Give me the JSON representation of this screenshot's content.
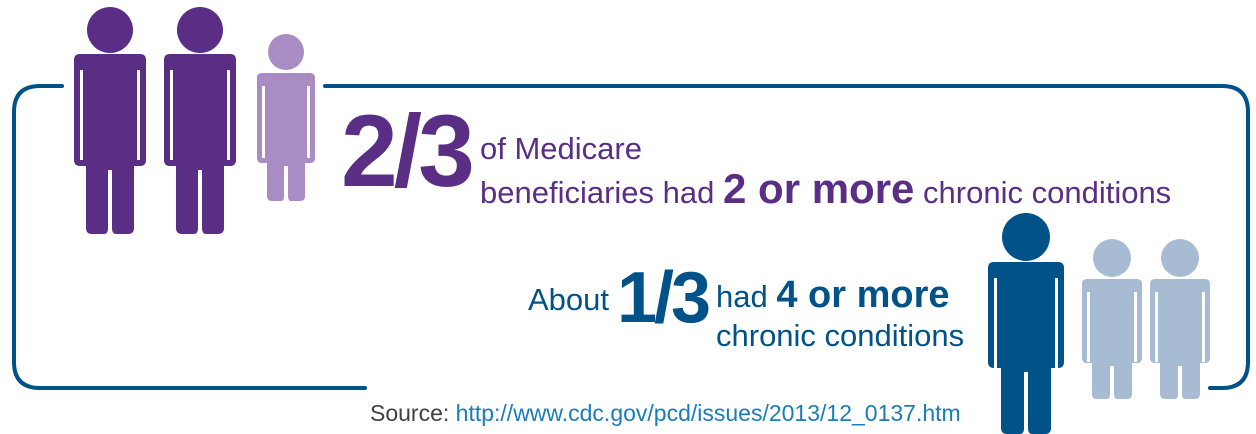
{
  "statement_1": {
    "fraction": "2/3",
    "line_1": "of Medicare",
    "line_2_prefix": "beneficiaries had",
    "line_2_emphasis": "2 or more",
    "line_2_suffix": "chronic conditions"
  },
  "statement_2": {
    "prefix": "About",
    "fraction": "1/3",
    "line_1_prefix": "had",
    "line_1_emphasis": "4 or more",
    "line_2": "chronic conditions"
  },
  "source": {
    "label": "Source:",
    "url": "http://www.cdc.gov/pcd/issues/2013/12_0137.htm"
  },
  "colors": {
    "purple_dark": "#5b2e85",
    "purple_light": "#a98cc4",
    "blue_dark": "#005288",
    "blue_light": "#a7bbd3",
    "frame": "#005288"
  },
  "icons": [
    "person-icon"
  ]
}
